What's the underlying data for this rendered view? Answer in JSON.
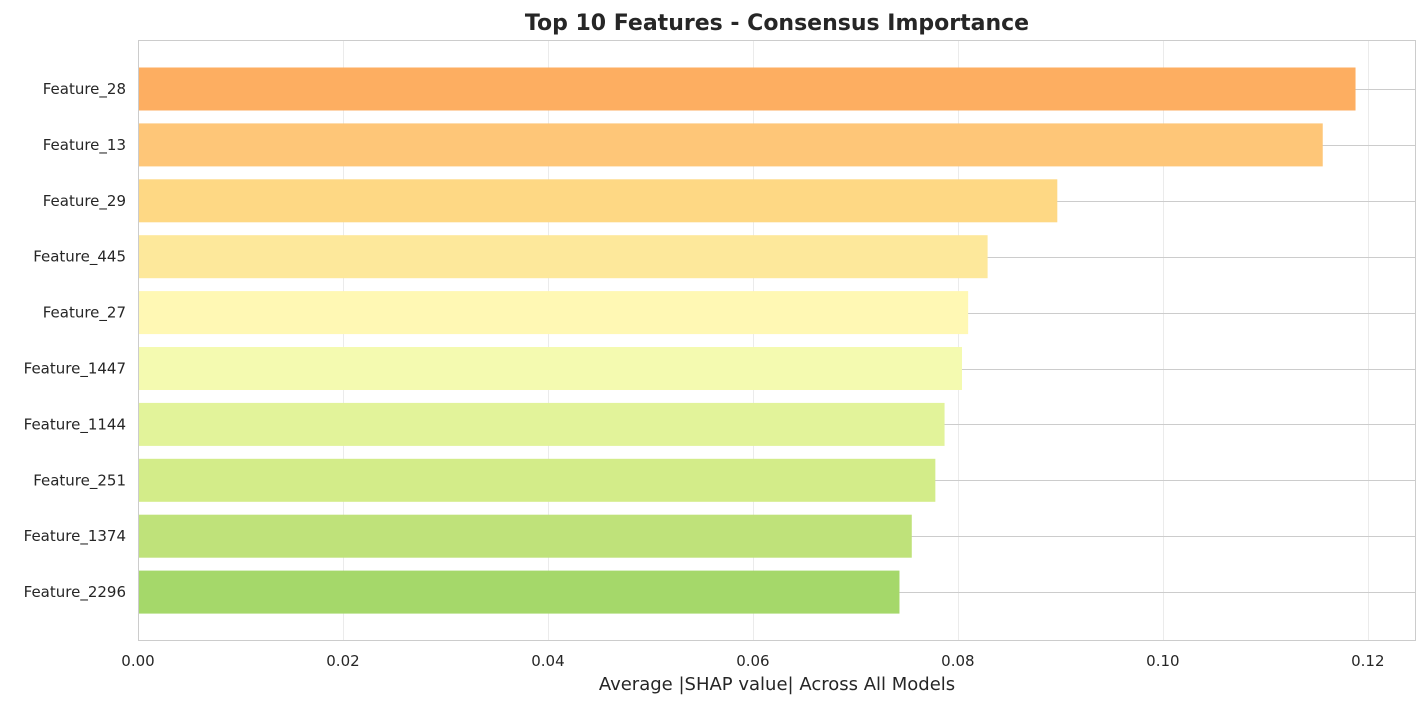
{
  "chart_data": {
    "type": "bar",
    "orientation": "horizontal",
    "title": "Top 10 Features - Consensus Importance",
    "xlabel": "Average |SHAP value| Across All Models",
    "ylabel": "",
    "xlim": [
      0,
      0.1247
    ],
    "xticks": [
      0,
      0.02,
      0.04,
      0.06,
      0.08,
      0.1,
      0.12
    ],
    "xtick_labels": [
      "0.00",
      "0.02",
      "0.04",
      "0.06",
      "0.08",
      "0.10",
      "0.12"
    ],
    "categories": [
      "Feature_28",
      "Feature_13",
      "Feature_29",
      "Feature_445",
      "Feature_27",
      "Feature_1447",
      "Feature_1144",
      "Feature_251",
      "Feature_1374",
      "Feature_2296"
    ],
    "values": [
      0.1188,
      0.1156,
      0.0897,
      0.0829,
      0.081,
      0.0804,
      0.0787,
      0.0778,
      0.0755,
      0.0743
    ],
    "colors": [
      "#fdae61",
      "#fec678",
      "#fed884",
      "#fde89b",
      "#fff8b4",
      "#f4fab0",
      "#e2f39a",
      "#d3ec89",
      "#bfe27a",
      "#a5d86a"
    ],
    "grid": true,
    "legend": "none"
  }
}
